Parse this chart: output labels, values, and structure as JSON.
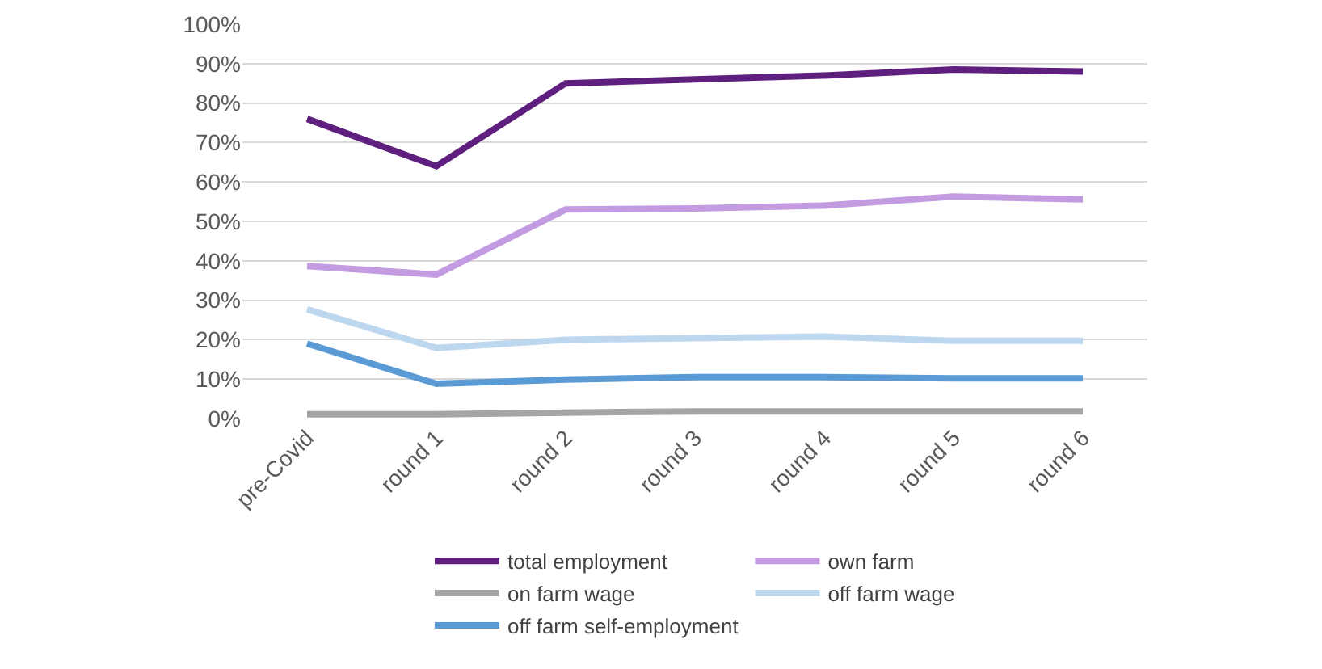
{
  "chart_data": {
    "type": "line",
    "categories": [
      "pre-Covid",
      "round 1",
      "round 2",
      "round 3",
      "round 4",
      "round 5",
      "round 6"
    ],
    "series": [
      {
        "name": "total employment",
        "color": "#5f1f7e",
        "values": [
          76,
          64,
          85,
          86,
          87,
          88.5,
          88
        ]
      },
      {
        "name": "own farm",
        "color": "#c39be0",
        "values": [
          38.7,
          36.5,
          53,
          53.3,
          54,
          56.3,
          55.6
        ]
      },
      {
        "name": "on farm wage",
        "color": "#a5a5a5",
        "values": [
          1.1,
          1.1,
          1.5,
          1.8,
          1.8,
          1.8,
          1.8
        ]
      },
      {
        "name": "off farm wage",
        "color": "#bdd7ee",
        "values": [
          27.7,
          17.9,
          20,
          20.4,
          20.8,
          19.7,
          19.7
        ]
      },
      {
        "name": "off farm self-employment",
        "color": "#5b9bd5",
        "values": [
          19,
          8.8,
          9.9,
          10.5,
          10.5,
          10.2,
          10.2
        ]
      }
    ],
    "ylim": [
      0,
      100
    ],
    "yticks": [
      {
        "value": 0,
        "label": "0%"
      },
      {
        "value": 10,
        "label": "10%"
      },
      {
        "value": 20,
        "label": "20%"
      },
      {
        "value": 30,
        "label": "30%"
      },
      {
        "value": 40,
        "label": "40%"
      },
      {
        "value": 50,
        "label": "50%"
      },
      {
        "value": 60,
        "label": "60%"
      },
      {
        "value": 70,
        "label": "70%"
      },
      {
        "value": 80,
        "label": "80%"
      },
      {
        "value": 90,
        "label": "90%"
      },
      {
        "value": 100,
        "label": "100%"
      }
    ],
    "grid": "y",
    "legend": "bottom",
    "marker": "none",
    "line_style": "solid"
  }
}
